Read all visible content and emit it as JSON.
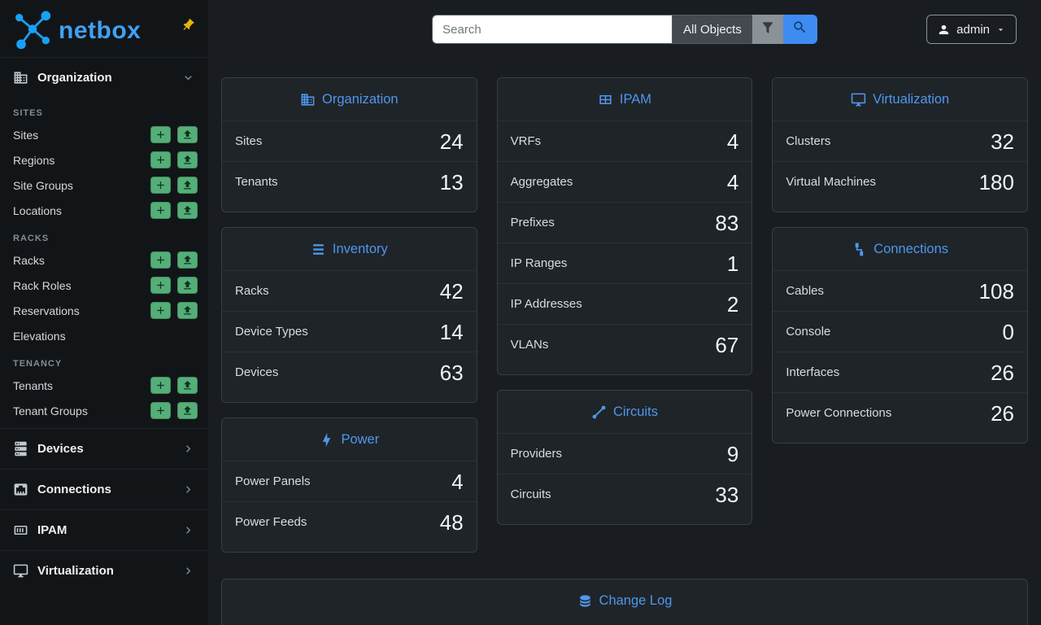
{
  "sidebar": {
    "logo_text": "netbox",
    "sections": [
      {
        "label": "Organization",
        "icon": "building-icon",
        "expanded": true,
        "groups": [
          {
            "header": "SITES",
            "items": [
              {
                "label": "Sites",
                "add": true,
                "import": true
              },
              {
                "label": "Regions",
                "add": true,
                "import": true
              },
              {
                "label": "Site Groups",
                "add": true,
                "import": true
              },
              {
                "label": "Locations",
                "add": true,
                "import": true
              }
            ]
          },
          {
            "header": "RACKS",
            "items": [
              {
                "label": "Racks",
                "add": true,
                "import": true
              },
              {
                "label": "Rack Roles",
                "add": true,
                "import": true
              },
              {
                "label": "Reservations",
                "add": true,
                "import": true
              },
              {
                "label": "Elevations",
                "add": false,
                "import": false
              }
            ]
          },
          {
            "header": "TENANCY",
            "items": [
              {
                "label": "Tenants",
                "add": true,
                "import": true
              },
              {
                "label": "Tenant Groups",
                "add": true,
                "import": true
              }
            ]
          }
        ]
      },
      {
        "label": "Devices",
        "icon": "server-stack-icon",
        "expanded": false
      },
      {
        "label": "Connections",
        "icon": "ethernet-icon",
        "expanded": false
      },
      {
        "label": "IPAM",
        "icon": "counter-icon",
        "expanded": false
      },
      {
        "label": "Virtualization",
        "icon": "monitor-icon",
        "expanded": false
      }
    ]
  },
  "topbar": {
    "search_placeholder": "Search",
    "object_type_label": "All Objects",
    "user_label": "admin"
  },
  "dashboard": {
    "columns": [
      [
        {
          "title": "Organization",
          "icon": "building-icon",
          "rows": [
            {
              "label": "Sites",
              "value": "24"
            },
            {
              "label": "Tenants",
              "value": "13"
            }
          ]
        },
        {
          "title": "Inventory",
          "icon": "rack-icon",
          "rows": [
            {
              "label": "Racks",
              "value": "42"
            },
            {
              "label": "Device Types",
              "value": "14"
            },
            {
              "label": "Devices",
              "value": "63"
            }
          ]
        },
        {
          "title": "Power",
          "icon": "lightning-icon",
          "rows": [
            {
              "label": "Power Panels",
              "value": "4"
            },
            {
              "label": "Power Feeds",
              "value": "48"
            }
          ]
        }
      ],
      [
        {
          "title": "IPAM",
          "icon": "grid-icon",
          "rows": [
            {
              "label": "VRFs",
              "value": "4"
            },
            {
              "label": "Aggregates",
              "value": "4"
            },
            {
              "label": "Prefixes",
              "value": "83"
            },
            {
              "label": "IP Ranges",
              "value": "1"
            },
            {
              "label": "IP Addresses",
              "value": "2"
            },
            {
              "label": "VLANs",
              "value": "67"
            }
          ]
        },
        {
          "title": "Circuits",
          "icon": "circuit-icon",
          "rows": [
            {
              "label": "Providers",
              "value": "9"
            },
            {
              "label": "Circuits",
              "value": "33"
            }
          ]
        }
      ],
      [
        {
          "title": "Virtualization",
          "icon": "monitor-icon",
          "rows": [
            {
              "label": "Clusters",
              "value": "32"
            },
            {
              "label": "Virtual Machines",
              "value": "180"
            }
          ]
        },
        {
          "title": "Connections",
          "icon": "cable-icon",
          "rows": [
            {
              "label": "Cables",
              "value": "108"
            },
            {
              "label": "Console",
              "value": "0"
            },
            {
              "label": "Interfaces",
              "value": "26"
            },
            {
              "label": "Power Connections",
              "value": "26"
            }
          ]
        }
      ]
    ],
    "changelog": {
      "title": "Change Log",
      "icon": "database-icon"
    }
  },
  "colors": {
    "accent_blue": "#4e97ed",
    "logo_blue": "#42a0f0",
    "green_button": "#55ae78",
    "search_button_blue": "#3e8cf2",
    "pin_yellow": "#eab308"
  }
}
